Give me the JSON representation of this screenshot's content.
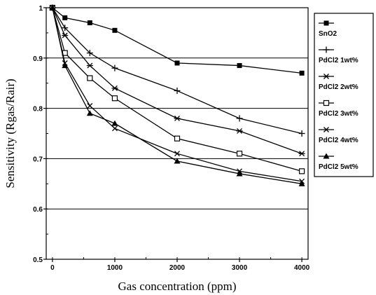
{
  "chart_data": {
    "type": "line",
    "title": "",
    "xlabel": "Gas concentration (ppm)",
    "ylabel": "Sensitivity (Rgas/Rair)",
    "xlim": [
      -100,
      4100
    ],
    "ylim": [
      0.5,
      1.0
    ],
    "x_ticks": [
      0,
      1000,
      2000,
      3000,
      4000
    ],
    "y_ticks": [
      0.5,
      0.6,
      0.7,
      0.8,
      0.9,
      1
    ],
    "y_tick_labels": [
      "0.5",
      "0.6",
      "0.7",
      "0.8",
      "0.9",
      "1"
    ],
    "grid": "horizontal",
    "legend_position": "right",
    "series": [
      {
        "name": "SnO2",
        "marker": "filled-square",
        "x": [
          0,
          200,
          600,
          1000,
          2000,
          3000,
          4000
        ],
        "y": [
          1.0,
          0.98,
          0.97,
          0.955,
          0.89,
          0.885,
          0.87
        ]
      },
      {
        "name": "PdCl2 1wt%",
        "marker": "plus",
        "x": [
          0,
          200,
          600,
          1000,
          2000,
          3000,
          4000
        ],
        "y": [
          1.0,
          0.96,
          0.91,
          0.88,
          0.835,
          0.78,
          0.75
        ]
      },
      {
        "name": "PdCl2 2wt%",
        "marker": "asterisk",
        "x": [
          0,
          200,
          600,
          1000,
          2000,
          3000,
          4000
        ],
        "y": [
          1.0,
          0.945,
          0.885,
          0.84,
          0.78,
          0.755,
          0.71
        ]
      },
      {
        "name": "PdCl2 3wt%",
        "marker": "open-square",
        "x": [
          0,
          200,
          600,
          1000,
          2000,
          3000,
          4000
        ],
        "y": [
          1.0,
          0.91,
          0.86,
          0.82,
          0.74,
          0.71,
          0.675
        ]
      },
      {
        "name": "PdCl2 4wt%",
        "marker": "x",
        "x": [
          0,
          200,
          600,
          1000,
          2000,
          3000,
          4000
        ],
        "y": [
          1.0,
          0.89,
          0.805,
          0.76,
          0.71,
          0.675,
          0.655
        ]
      },
      {
        "name": "PdCl2 5wt%",
        "marker": "filled-triangle",
        "x": [
          0,
          200,
          600,
          1000,
          2000,
          3000,
          4000
        ],
        "y": [
          1.0,
          0.885,
          0.79,
          0.77,
          0.695,
          0.67,
          0.65
        ]
      }
    ]
  }
}
